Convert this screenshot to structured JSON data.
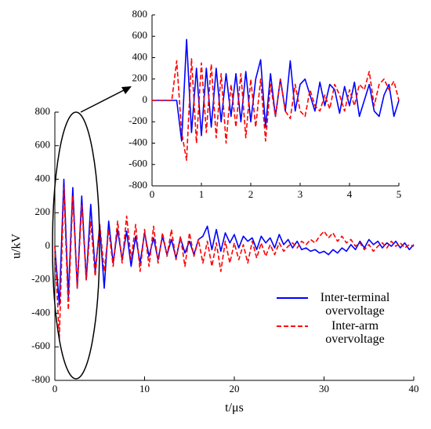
{
  "chart_data": [
    {
      "type": "line",
      "xlabel": "t/μs",
      "ylabel": "u/kV",
      "x": [
        0,
        0.5,
        1,
        1.5,
        2,
        2.5,
        3,
        3.5,
        4,
        4.5,
        5,
        5.5,
        6,
        6.5,
        7,
        7.5,
        8,
        8.5,
        9,
        9.5,
        10,
        10.5,
        11,
        11.5,
        12,
        12.5,
        13,
        13.5,
        14,
        14.5,
        15,
        15.5,
        16,
        16.5,
        17,
        17.5,
        18,
        18.5,
        19,
        19.5,
        20,
        20.5,
        21,
        21.5,
        22,
        22.5,
        23,
        23.5,
        24,
        24.5,
        25,
        25.5,
        26,
        26.5,
        27,
        27.5,
        28,
        28.5,
        29,
        29.5,
        30,
        30.5,
        31,
        31.5,
        32,
        32.5,
        33,
        33.5,
        34,
        34.5,
        35,
        35.5,
        36,
        36.5,
        37,
        37.5,
        38,
        38.5,
        39,
        39.5,
        40
      ],
      "series": [
        {
          "name": "Inter-terminal overvoltage",
          "color": "#0000ff",
          "linestyle": "solid",
          "values": [
            0,
            -350,
            400,
            -300,
            350,
            -250,
            300,
            -200,
            250,
            -150,
            120,
            -250,
            150,
            -100,
            100,
            -80,
            90,
            -120,
            60,
            -100,
            80,
            -60,
            50,
            -80,
            60,
            -50,
            40,
            -70,
            50,
            -40,
            30,
            -50,
            40,
            60,
            120,
            -20,
            100,
            -30,
            80,
            20,
            70,
            -10,
            60,
            30,
            50,
            -20,
            60,
            20,
            50,
            -10,
            70,
            10,
            40,
            -10,
            30,
            -20,
            -10,
            -30,
            -20,
            -40,
            -30,
            -50,
            -20,
            -40,
            -10,
            -30,
            10,
            -20,
            30,
            -10,
            40,
            10,
            30,
            -10,
            20,
            0,
            30,
            -10,
            20,
            -20,
            10
          ]
        },
        {
          "name": "Inter-arm overvoltage",
          "color": "#ff0000",
          "linestyle": "dashed",
          "values": [
            0,
            -550,
            350,
            -380,
            300,
            -250,
            250,
            -200,
            150,
            -180,
            130,
            -150,
            100,
            -120,
            150,
            -100,
            180,
            -80,
            130,
            -150,
            100,
            -120,
            120,
            -100,
            80,
            -60,
            100,
            -80,
            60,
            -120,
            80,
            -60,
            40,
            -100,
            30,
            -120,
            20,
            -150,
            30,
            -100,
            20,
            -80,
            10,
            -100,
            30,
            -70,
            20,
            -60,
            10,
            -50,
            20,
            -30,
            0,
            20,
            -10,
            30,
            10,
            40,
            20,
            60,
            90,
            50,
            80,
            30,
            60,
            20,
            40,
            0,
            20,
            -20,
            10,
            -30,
            0,
            20,
            -10,
            30,
            0,
            20,
            -10,
            10,
            0
          ]
        }
      ],
      "xlim": [
        0,
        40
      ],
      "xticks": [
        0,
        10,
        20,
        30,
        40
      ],
      "ylim": [
        -800,
        800
      ],
      "yticks": [
        -800,
        -600,
        -400,
        -200,
        0,
        200,
        400,
        600,
        800
      ],
      "legend": "lower right",
      "grid": false
    },
    {
      "type": "line",
      "x": [
        0,
        0.1,
        0.2,
        0.3,
        0.4,
        0.5,
        0.6,
        0.7,
        0.8,
        0.9,
        1,
        1.1,
        1.2,
        1.3,
        1.4,
        1.5,
        1.6,
        1.7,
        1.8,
        1.9,
        2,
        2.1,
        2.2,
        2.3,
        2.4,
        2.5,
        2.6,
        2.7,
        2.8,
        2.9,
        3,
        3.1,
        3.2,
        3.3,
        3.4,
        3.5,
        3.6,
        3.7,
        3.8,
        3.9,
        4,
        4.1,
        4.2,
        4.3,
        4.4,
        4.5,
        4.6,
        4.7,
        4.8,
        4.9,
        5
      ],
      "series": [
        {
          "color": "#0000ff",
          "linestyle": "solid",
          "values": [
            0,
            0,
            0,
            0,
            0,
            0,
            -380,
            570,
            -300,
            300,
            -330,
            300,
            -250,
            300,
            -200,
            250,
            -150,
            250,
            -200,
            270,
            -200,
            200,
            380,
            -250,
            250,
            -150,
            200,
            -100,
            370,
            -100,
            150,
            200,
            50,
            -100,
            170,
            -50,
            150,
            100,
            -120,
            130,
            -50,
            170,
            -150,
            0,
            150,
            -100,
            -150,
            50,
            150,
            -150,
            0
          ]
        },
        {
          "color": "#ff0000",
          "linestyle": "dashed",
          "values": [
            0,
            0,
            0,
            0,
            0,
            370,
            -300,
            -560,
            390,
            -400,
            350,
            -300,
            340,
            -350,
            250,
            -400,
            150,
            -250,
            250,
            -350,
            200,
            -250,
            200,
            -380,
            150,
            -150,
            200,
            -100,
            -170,
            150,
            -100,
            -150,
            100,
            -50,
            -100,
            50,
            -80,
            150,
            50,
            -100,
            100,
            -50,
            150,
            100,
            270,
            -50,
            150,
            200,
            100,
            180,
            0
          ]
        }
      ],
      "xlim": [
        0,
        5
      ],
      "xticks": [
        0,
        1,
        2,
        3,
        4,
        5
      ],
      "ylim": [
        -800,
        800
      ],
      "yticks": [
        -800,
        -600,
        -400,
        -200,
        0,
        200,
        400,
        600,
        800
      ],
      "grid": false
    }
  ]
}
